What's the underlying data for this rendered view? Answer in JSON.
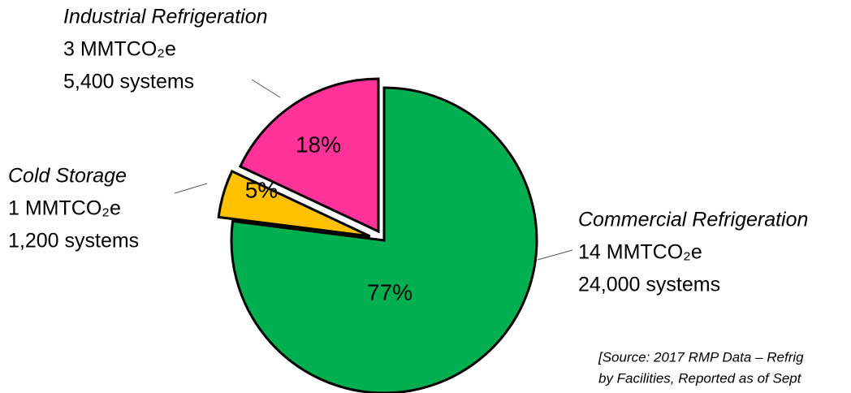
{
  "chart_data": {
    "type": "pie",
    "categories": [
      "Commercial Refrigeration",
      "Cold Storage",
      "Industrial Refrigeration"
    ],
    "values": [
      77,
      5,
      18
    ],
    "value_labels": [
      "77%",
      "5%",
      "18%"
    ],
    "colors": [
      "#00b050",
      "#ffc000",
      "#ff3399"
    ],
    "emissions": [
      "14 MMTCO₂e",
      "1 MMTCO₂e",
      "3 MMTCO₂e"
    ],
    "systems": [
      "24,000 systems",
      "1,200 systems",
      "5,400 systems"
    ],
    "source": [
      "[Source: 2017 RMP Data – Refrig",
      "by Facilities, Reported as of Sept"
    ]
  }
}
